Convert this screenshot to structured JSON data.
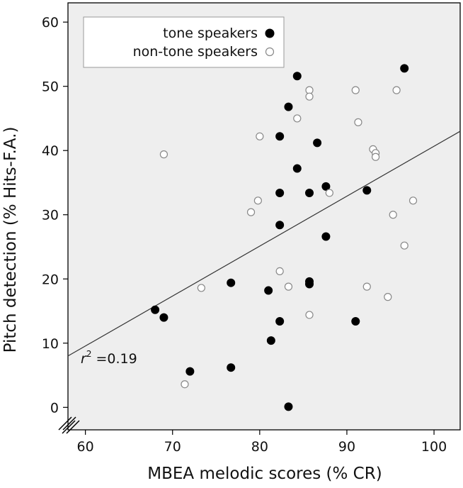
{
  "chart_data": {
    "type": "scatter",
    "title": "",
    "xlabel": "MBEA melodic scores (% CR)",
    "ylabel": "Pitch detection (% Hits-F.A.)",
    "xlim": [
      58,
      103
    ],
    "ylim": [
      -3.5,
      63
    ],
    "xticks": [
      60,
      70,
      80,
      90,
      100
    ],
    "yticks": [
      0,
      10,
      20,
      30,
      40,
      50,
      60
    ],
    "grid": false,
    "background": "#eeeeee",
    "legend_position": "top-left",
    "series": [
      {
        "name": "tone speakers",
        "marker": "filled-circle",
        "color": "#000000",
        "points": [
          [
            68.0,
            15.2
          ],
          [
            69.0,
            14.0
          ],
          [
            72.0,
            5.6
          ],
          [
            76.7,
            19.4
          ],
          [
            76.7,
            6.2
          ],
          [
            81.0,
            18.2
          ],
          [
            81.3,
            10.4
          ],
          [
            82.3,
            42.2
          ],
          [
            82.3,
            33.4
          ],
          [
            82.3,
            28.4
          ],
          [
            82.3,
            13.4
          ],
          [
            83.3,
            46.8
          ],
          [
            83.3,
            0.1
          ],
          [
            84.3,
            51.6
          ],
          [
            84.3,
            37.2
          ],
          [
            85.7,
            33.4
          ],
          [
            85.7,
            19.6
          ],
          [
            85.7,
            19.2
          ],
          [
            86.6,
            41.2
          ],
          [
            87.6,
            34.4
          ],
          [
            87.6,
            26.6
          ],
          [
            91.0,
            13.4
          ],
          [
            92.3,
            33.8
          ],
          [
            96.6,
            52.8
          ]
        ]
      },
      {
        "name": "non-tone speakers",
        "marker": "open-circle",
        "color": "#888888",
        "points": [
          [
            69.0,
            39.4
          ],
          [
            71.4,
            3.6
          ],
          [
            73.3,
            18.6
          ],
          [
            79.0,
            30.4
          ],
          [
            79.8,
            32.2
          ],
          [
            80.0,
            42.2
          ],
          [
            82.3,
            21.2
          ],
          [
            83.3,
            18.8
          ],
          [
            84.3,
            45.0
          ],
          [
            85.7,
            49.4
          ],
          [
            85.7,
            48.4
          ],
          [
            85.7,
            14.4
          ],
          [
            88.0,
            33.4
          ],
          [
            91.0,
            49.4
          ],
          [
            91.3,
            44.4
          ],
          [
            92.3,
            18.8
          ],
          [
            93.0,
            40.2
          ],
          [
            93.3,
            39.6
          ],
          [
            93.3,
            39.0
          ],
          [
            94.7,
            17.2
          ],
          [
            95.3,
            30.0
          ],
          [
            95.7,
            49.4
          ],
          [
            96.6,
            25.2
          ],
          [
            97.6,
            32.2
          ]
        ]
      }
    ],
    "regression_line": {
      "x": [
        58,
        103
      ],
      "y": [
        8.0,
        43.0
      ]
    },
    "annotation": {
      "base": "r",
      "superscript": "2",
      "text": " =0.19"
    }
  }
}
